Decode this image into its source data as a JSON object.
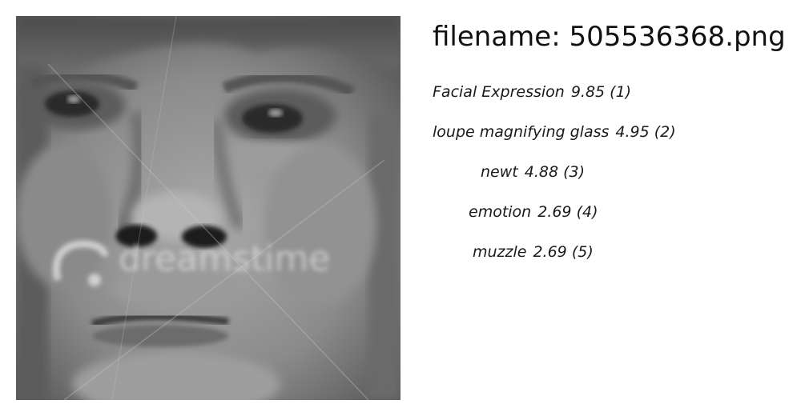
{
  "image": {
    "alt": "grayscale close-up face photo",
    "watermark_text": "dreamstime",
    "accent": "#6e6e6e"
  },
  "header": {
    "prefix": "filename:",
    "filename": "505536368.png"
  },
  "predictions": [
    {
      "label": "Facial Expression",
      "score_text": "9.85 (1)"
    },
    {
      "label": "loupe magnifying glass",
      "score_text": "4.95 (2)"
    },
    {
      "label": "newt",
      "score_text": "4.88 (3)"
    },
    {
      "label": "emotion",
      "score_text": "2.69 (4)"
    },
    {
      "label": "muzzle",
      "score_text": "2.69 (5)"
    }
  ]
}
